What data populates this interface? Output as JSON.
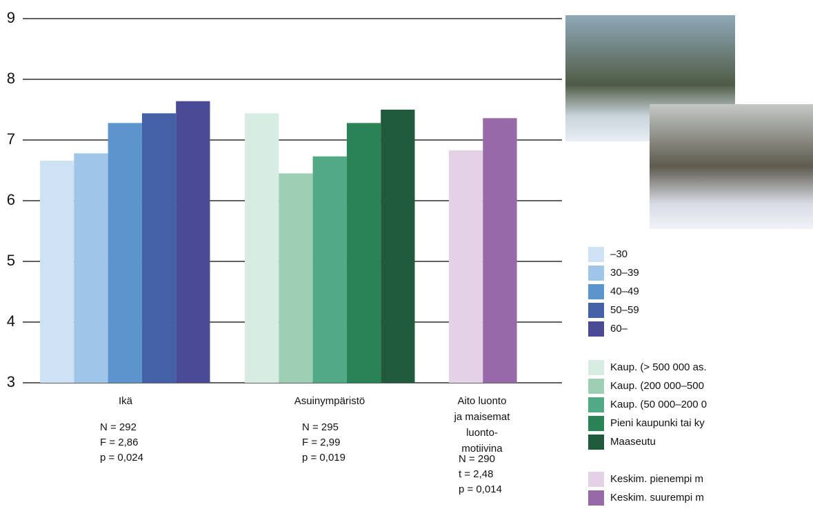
{
  "chart_data": {
    "type": "bar",
    "ylim": [
      3,
      9
    ],
    "yticks": [
      3,
      4,
      5,
      6,
      7,
      8,
      9
    ],
    "grid": true,
    "groups": [
      {
        "label": [
          "Ikä"
        ],
        "stats": [
          "N = 292",
          "F = 2,86",
          "p = 0,024"
        ],
        "series": [
          {
            "name": "–30",
            "color": "#cfe2f3",
            "value": 6.66
          },
          {
            "name": "30–39",
            "color": "#9fc5e8",
            "value": 6.78
          },
          {
            "name": "40–49",
            "color": "#5b95cc",
            "value": 7.28
          },
          {
            "name": "50–59",
            "color": "#4461a8",
            "value": 7.44
          },
          {
            "name": "60–",
            "color": "#4a4a95",
            "value": 7.64
          }
        ]
      },
      {
        "label": [
          "Asuinympäristö"
        ],
        "stats": [
          "N = 295",
          "F = 2,99",
          "p = 0,019"
        ],
        "series": [
          {
            "name": "Kaup. (> 500 000 as.",
            "color": "#d7ede4",
            "value": 7.44
          },
          {
            "name": "Kaup. (200 000–500",
            "color": "#9ccfb4",
            "value": 6.45
          },
          {
            "name": "Kaup. (50 000–200 0",
            "color": "#52a986",
            "value": 6.73
          },
          {
            "name": "Pieni kaupunki tai ky",
            "color": "#2a8355",
            "value": 7.28
          },
          {
            "name": "Maaseutu",
            "color": "#1f5a3c",
            "value": 7.5
          }
        ]
      },
      {
        "label": [
          "Aito luonto",
          "ja maisemat",
          "luonto-",
          "motiivina"
        ],
        "stats": [
          "N = 290",
          "t = 2,48",
          "p = 0,014"
        ],
        "series": [
          {
            "name": "Keskim. pienempi m",
            "color": "#e3d2e6",
            "value": 6.83
          },
          {
            "name": "Keskim. suurempi m",
            "color": "#9869a8",
            "value": 7.36
          }
        ]
      }
    ]
  }
}
